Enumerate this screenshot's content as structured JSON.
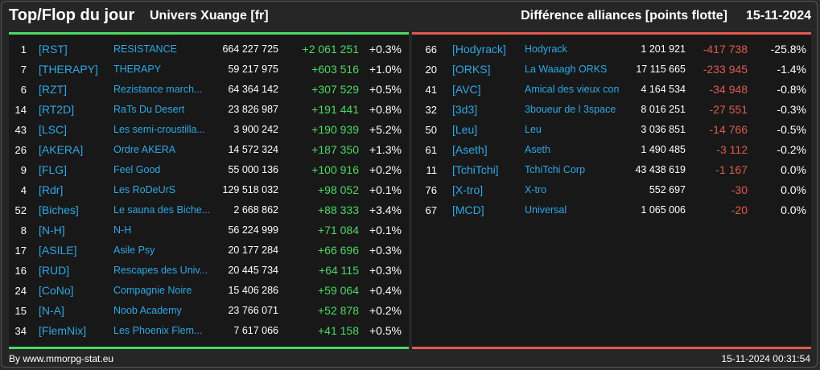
{
  "header": {
    "title": "Top/Flop du jour",
    "universe": "Univers Xuange [fr]",
    "subtitle": "Différence alliances [points flotte]",
    "date": "15-11-2024"
  },
  "colors": {
    "accent_blue": "#2ea8e6",
    "positive_green": "#4cd964",
    "negative_red": "#e05a50"
  },
  "top": [
    {
      "rank": "1",
      "tag": "[RST]",
      "name": "RESISTANCE",
      "points": "664 227 725",
      "diff": "+2 061 251",
      "pct": "+0.3%"
    },
    {
      "rank": "7",
      "tag": "[THERAPY]",
      "name": "THERAPY",
      "points": "59 217 975",
      "diff": "+603 516",
      "pct": "+1.0%"
    },
    {
      "rank": "6",
      "tag": "[RZT]",
      "name": "Rezistance march...",
      "points": "64 364 142",
      "diff": "+307 529",
      "pct": "+0.5%"
    },
    {
      "rank": "14",
      "tag": "[RT2D]",
      "name": "RaTs Du Desert",
      "points": "23 826 987",
      "diff": "+191 441",
      "pct": "+0.8%"
    },
    {
      "rank": "43",
      "tag": "[LSC]",
      "name": "Les semi-croustilla...",
      "points": "3 900 242",
      "diff": "+190 939",
      "pct": "+5.2%"
    },
    {
      "rank": "26",
      "tag": "[AKERA]",
      "name": "Ordre AKERA",
      "points": "14 572 324",
      "diff": "+187 350",
      "pct": "+1.3%"
    },
    {
      "rank": "9",
      "tag": "[FLG]",
      "name": "Feel Good",
      "points": "55 000 136",
      "diff": "+100 916",
      "pct": "+0.2%"
    },
    {
      "rank": "4",
      "tag": "[Rdr]",
      "name": "Les RoDeUrS",
      "points": "129 518 032",
      "diff": "+98 052",
      "pct": "+0.1%"
    },
    {
      "rank": "52",
      "tag": "[Biches]",
      "name": "Le sauna des Biche...",
      "points": "2 668 862",
      "diff": "+88 333",
      "pct": "+3.4%"
    },
    {
      "rank": "8",
      "tag": "[N-H]",
      "name": "N-H",
      "points": "56 224 999",
      "diff": "+71 084",
      "pct": "+0.1%"
    },
    {
      "rank": "17",
      "tag": "[ASILE]",
      "name": "Asile Psy",
      "points": "20 177 284",
      "diff": "+66 696",
      "pct": "+0.3%"
    },
    {
      "rank": "16",
      "tag": "[RUD]",
      "name": "Rescapes des Univ...",
      "points": "20 445 734",
      "diff": "+64 115",
      "pct": "+0.3%"
    },
    {
      "rank": "24",
      "tag": "[CoNo]",
      "name": "Compagnie Noire",
      "points": "15 406 286",
      "diff": "+59 064",
      "pct": "+0.4%"
    },
    {
      "rank": "15",
      "tag": "[N-A]",
      "name": "Noob Academy",
      "points": "23 766 071",
      "diff": "+52 878",
      "pct": "+0.2%"
    },
    {
      "rank": "34",
      "tag": "[FlemNix]",
      "name": "Les Phoenix Flem...",
      "points": "7 617 066",
      "diff": "+41 158",
      "pct": "+0.5%"
    }
  ],
  "flop": [
    {
      "rank": "66",
      "tag": "[Hodyrack]",
      "name": "Hodyrack",
      "points": "1 201 921",
      "diff": "-417 738",
      "pct": "-25.8%"
    },
    {
      "rank": "20",
      "tag": "[ORKS]",
      "name": "La Waaagh ORKS",
      "points": "17 115 665",
      "diff": "-233 945",
      "pct": "-1.4%"
    },
    {
      "rank": "41",
      "tag": "[AVC]",
      "name": "Amical des vieux con",
      "points": "4 164 534",
      "diff": "-34 948",
      "pct": "-0.8%"
    },
    {
      "rank": "32",
      "tag": "[3d3]",
      "name": "3boueur de l 3space",
      "points": "8 016 251",
      "diff": "-27 551",
      "pct": "-0.3%"
    },
    {
      "rank": "50",
      "tag": "[Leu]",
      "name": "Leu",
      "points": "3 036 851",
      "diff": "-14 766",
      "pct": "-0.5%"
    },
    {
      "rank": "61",
      "tag": "[Aseth]",
      "name": "Aseth",
      "points": "1 490 485",
      "diff": "-3 112",
      "pct": "-0.2%"
    },
    {
      "rank": "11",
      "tag": "[TchiTchi]",
      "name": "TchiTchi Corp",
      "points": "43 438 619",
      "diff": "-1 167",
      "pct": "0.0%"
    },
    {
      "rank": "76",
      "tag": "[X-tro]",
      "name": "X-tro",
      "points": "552 697",
      "diff": "-30",
      "pct": "0.0%"
    },
    {
      "rank": "67",
      "tag": "[MCD]",
      "name": "Universal",
      "points": "1 065 006",
      "diff": "-20",
      "pct": "0.0%"
    }
  ],
  "footer": {
    "source": "By www.mmorpg-stat.eu",
    "timestamp": "15-11-2024 00:31:54"
  }
}
